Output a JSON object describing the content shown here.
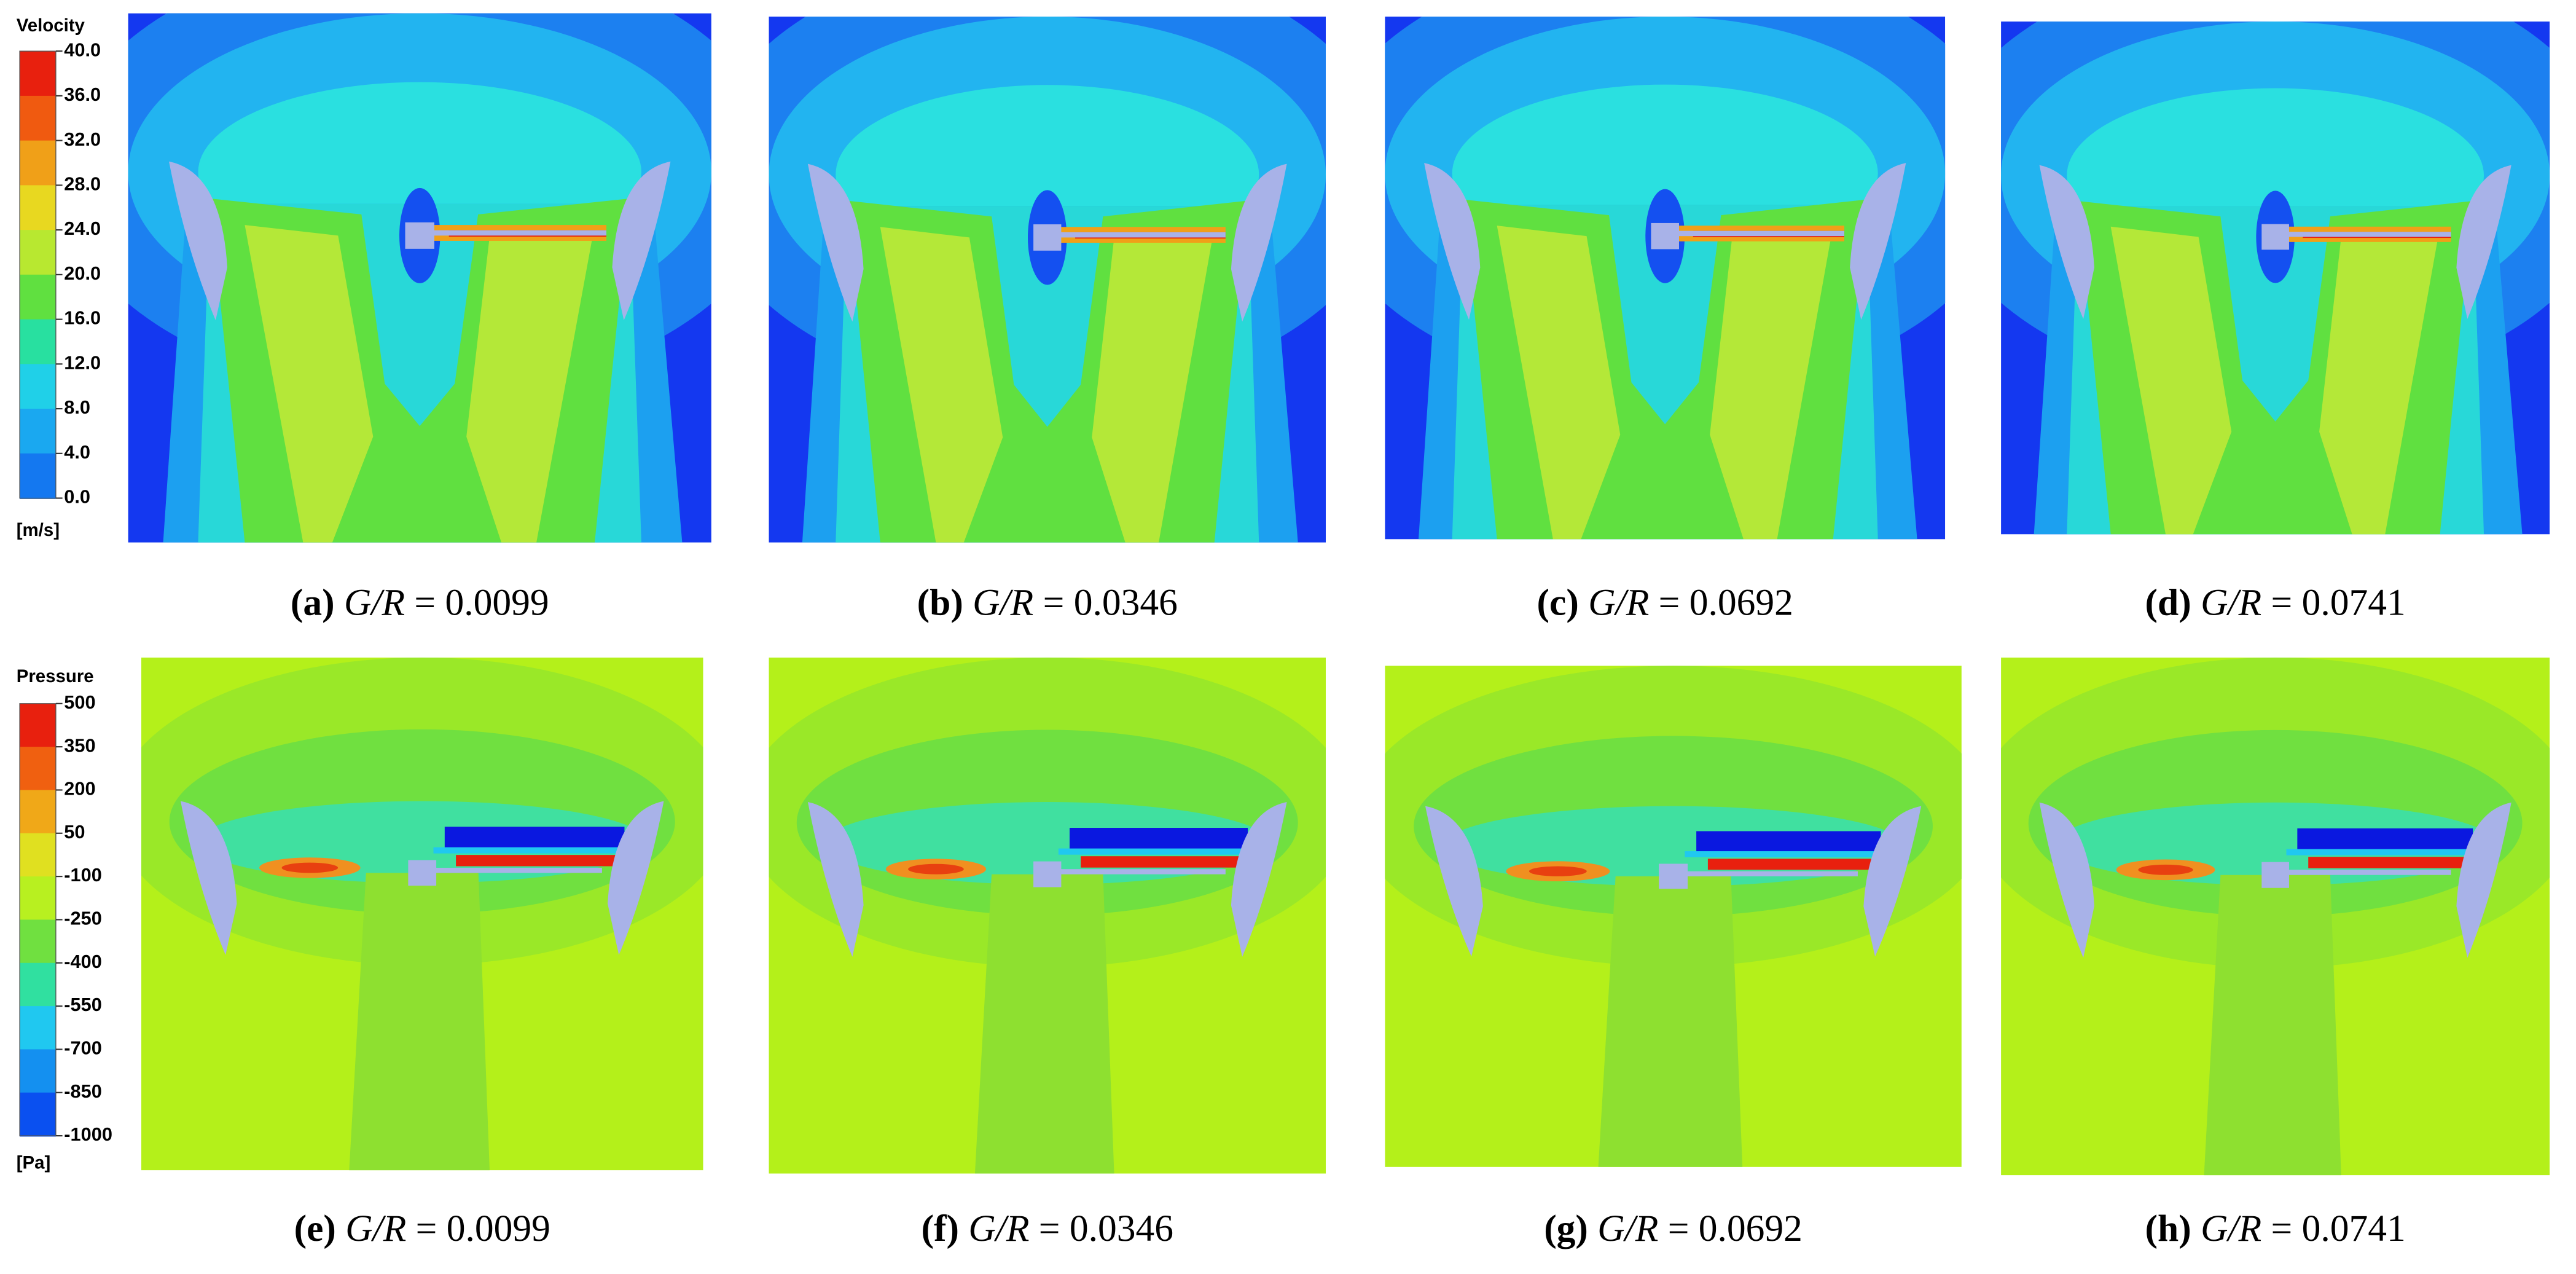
{
  "velocity_legend": {
    "title": "Velocity",
    "ticks": [
      "40.0",
      "36.0",
      "32.0",
      "28.0",
      "24.0",
      "20.0",
      "16.0",
      "12.0",
      "8.0",
      "4.0",
      "0.0"
    ],
    "unit": "[m/s]"
  },
  "pressure_legend": {
    "title": "Pressure",
    "ticks": [
      "500",
      "350",
      "200",
      "50",
      "-100",
      "-250",
      "-400",
      "-550",
      "-700",
      "-850",
      "-1000"
    ],
    "unit": "[Pa]"
  },
  "panels": [
    {
      "label": "(a)",
      "variable": "G/R",
      "value": "= 0.0099"
    },
    {
      "label": "(b)",
      "variable": "G/R",
      "value": "= 0.0346"
    },
    {
      "label": "(c)",
      "variable": "G/R",
      "value": "= 0.0692"
    },
    {
      "label": "(d)",
      "variable": "G/R",
      "value": "= 0.0741"
    },
    {
      "label": "(e)",
      "variable": "G/R",
      "value": "= 0.0099"
    },
    {
      "label": "(f)",
      "variable": "G/R",
      "value": "= 0.0346"
    },
    {
      "label": "(g)",
      "variable": "G/R",
      "value": "= 0.0692"
    },
    {
      "label": "(h)",
      "variable": "G/R",
      "value": "= 0.0741"
    }
  ]
}
